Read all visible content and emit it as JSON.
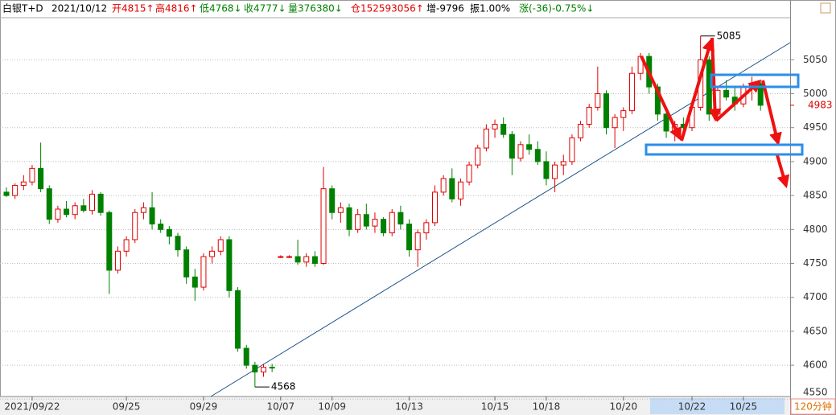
{
  "header": {
    "items": [
      "白银T+D",
      "2021/10/12",
      "开4815↑",
      "高4816↑",
      "低4768↓",
      "收4777↓",
      "量376380↓",
      "仓152593056↑",
      "增-9796",
      "振1.00%",
      "涨(-36)-0.75%↓"
    ]
  },
  "chart_data": {
    "type": "candlestick",
    "period": "120分钟",
    "categories": [
      null,
      null,
      null,
      "2021/09/22",
      null,
      null,
      null,
      null,
      null,
      null,
      null,
      null,
      null,
      null,
      "09/25",
      null,
      null,
      null,
      null,
      null,
      null,
      null,
      null,
      "09/29",
      null,
      null,
      null,
      null,
      null,
      null,
      null,
      null,
      "10/07",
      null,
      null,
      null,
      null,
      null,
      "10/09",
      null,
      null,
      null,
      null,
      null,
      null,
      null,
      null,
      "10/13",
      null,
      null,
      null,
      null,
      null,
      null,
      null,
      null,
      null,
      "10/15",
      null,
      null,
      null,
      null,
      null,
      "10/18",
      null,
      null,
      null,
      null,
      null,
      null,
      null,
      null,
      "10/20",
      null,
      null,
      null,
      null,
      null,
      null,
      null,
      "10/22",
      null,
      null,
      null,
      null,
      null,
      "10/25",
      null,
      null
    ],
    "candles": [
      [
        4855,
        4862,
        4848,
        4850
      ],
      [
        4850,
        4868,
        4845,
        4865
      ],
      [
        4865,
        4880,
        4858,
        4870
      ],
      [
        4870,
        4895,
        4865,
        4890
      ],
      [
        4890,
        4928,
        4855,
        4860
      ],
      [
        4860,
        4865,
        4808,
        4815
      ],
      [
        4815,
        4835,
        4810,
        4830
      ],
      [
        4830,
        4842,
        4818,
        4822
      ],
      [
        4822,
        4840,
        4815,
        4835
      ],
      [
        4835,
        4845,
        4825,
        4828
      ],
      [
        4828,
        4858,
        4822,
        4852
      ],
      [
        4852,
        4855,
        4820,
        4825
      ],
      [
        4825,
        4828,
        4705,
        4740
      ],
      [
        4740,
        4775,
        4735,
        4768
      ],
      [
        4768,
        4790,
        4760,
        4785
      ],
      [
        4785,
        4830,
        4780,
        4825
      ],
      [
        4825,
        4840,
        4815,
        4832
      ],
      [
        4832,
        4855,
        4800,
        4808
      ],
      [
        4808,
        4815,
        4795,
        4800
      ],
      [
        4800,
        4805,
        4778,
        4790
      ],
      [
        4790,
        4795,
        4760,
        4770
      ],
      [
        4770,
        4775,
        4720,
        4730
      ],
      [
        4730,
        4742,
        4695,
        4715
      ],
      [
        4715,
        4765,
        4710,
        4760
      ],
      [
        4760,
        4775,
        4750,
        4768
      ],
      [
        4768,
        4790,
        4762,
        4785
      ],
      [
        4785,
        4790,
        4700,
        4710
      ],
      [
        4710,
        4715,
        4620,
        4625
      ],
      [
        4625,
        4630,
        4595,
        4600
      ],
      [
        4600,
        4605,
        4568,
        4590
      ],
      [
        4590,
        4602,
        4583,
        4597
      ],
      [
        4597,
        4602,
        4590,
        4596
      ],
      [
        4760,
        4762,
        4758,
        4760
      ],
      [
        4760,
        4762,
        4758,
        4760
      ],
      [
        4760,
        4785,
        4748,
        4752
      ],
      [
        4752,
        4765,
        4745,
        4760
      ],
      [
        4760,
        4768,
        4745,
        4750
      ],
      [
        4750,
        4892,
        4748,
        4860
      ],
      [
        4860,
        4865,
        4815,
        4825
      ],
      [
        4825,
        4840,
        4810,
        4832
      ],
      [
        4832,
        4838,
        4790,
        4800
      ],
      [
        4800,
        4830,
        4795,
        4822
      ],
      [
        4822,
        4838,
        4800,
        4805
      ],
      [
        4805,
        4825,
        4795,
        4815
      ],
      [
        4815,
        4818,
        4790,
        4795
      ],
      [
        4795,
        4830,
        4790,
        4825
      ],
      [
        4825,
        4835,
        4800,
        4808
      ],
      [
        4808,
        4815,
        4760,
        4770
      ],
      [
        4770,
        4800,
        4745,
        4795
      ],
      [
        4795,
        4815,
        4785,
        4810
      ],
      [
        4810,
        4865,
        4805,
        4855
      ],
      [
        4855,
        4880,
        4850,
        4875
      ],
      [
        4875,
        4890,
        4840,
        4845
      ],
      [
        4845,
        4875,
        4835,
        4870
      ],
      [
        4870,
        4900,
        4865,
        4895
      ],
      [
        4895,
        4925,
        4890,
        4920
      ],
      [
        4920,
        4955,
        4915,
        4948
      ],
      [
        4948,
        4962,
        4935,
        4955
      ],
      [
        4955,
        4965,
        4935,
        4940
      ],
      [
        4940,
        4945,
        4880,
        4905
      ],
      [
        4905,
        4930,
        4900,
        4925
      ],
      [
        4925,
        4940,
        4910,
        4918
      ],
      [
        4918,
        4930,
        4895,
        4900
      ],
      [
        4900,
        4915,
        4865,
        4875
      ],
      [
        4875,
        4900,
        4855,
        4895
      ],
      [
        4895,
        4910,
        4880,
        4900
      ],
      [
        4900,
        4940,
        4895,
        4935
      ],
      [
        4935,
        4960,
        4930,
        4955
      ],
      [
        4955,
        4985,
        4950,
        4980
      ],
      [
        4980,
        5040,
        4975,
        5000
      ],
      [
        5000,
        5005,
        4940,
        4950
      ],
      [
        4950,
        4970,
        4920,
        4965
      ],
      [
        4965,
        4980,
        4945,
        4975
      ],
      [
        4975,
        5040,
        4970,
        5030
      ],
      [
        5030,
        5060,
        5020,
        5055
      ],
      [
        5055,
        5060,
        5000,
        5010
      ],
      [
        5010,
        5015,
        4960,
        4970
      ],
      [
        4970,
        4975,
        4935,
        4945
      ],
      [
        4945,
        4960,
        4930,
        4955
      ],
      [
        4955,
        4965,
        4935,
        4950
      ],
      [
        4950,
        4985,
        4945,
        4980
      ],
      [
        4980,
        5085,
        4975,
        5050
      ],
      [
        5050,
        5055,
        4960,
        4970
      ],
      [
        4970,
        5010,
        4965,
        5005
      ],
      [
        5005,
        5020,
        4990,
        4995
      ],
      [
        4995,
        5010,
        4975,
        4985
      ],
      [
        4985,
        5015,
        4980,
        5010
      ],
      [
        5010,
        5025,
        4990,
        5015
      ],
      [
        5015,
        5018,
        4975,
        4983
      ]
    ],
    "up_color": "#e00000",
    "down_color": "#008000",
    "ylim": [
      4548,
      5112
    ],
    "yticks": [
      4550,
      4600,
      4650,
      4700,
      4750,
      4800,
      4850,
      4900,
      4950,
      5000,
      5050
    ],
    "grid": true,
    "current_price": 4983,
    "annotations": [
      {
        "text": "5085",
        "value": 5085
      },
      {
        "text": "4568",
        "value": 4568
      }
    ]
  }
}
